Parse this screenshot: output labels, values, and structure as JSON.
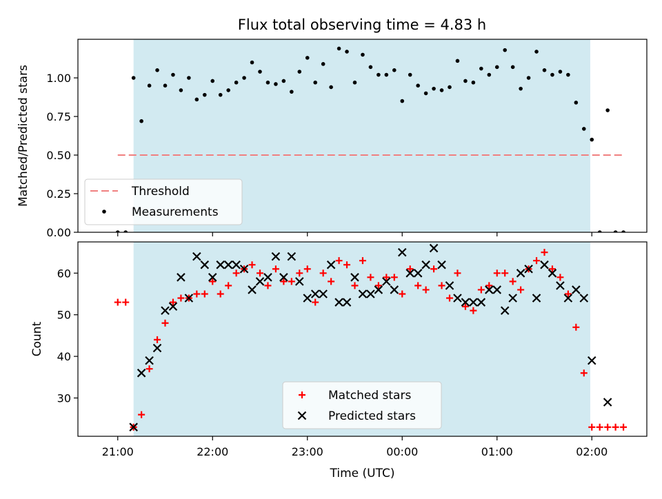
{
  "title": "Flux total observing time = 4.83 h",
  "chart_data": [
    {
      "type": "scatter",
      "ylabel": "Matched/Predicted stars",
      "xlim_hours": [
        20.58,
        26.58
      ],
      "ylim": [
        0,
        1.25
      ],
      "yticks": [
        "0.00",
        "0.25",
        "0.50",
        "0.75",
        "1.00"
      ],
      "ytick_values": [
        0,
        0.25,
        0.5,
        0.75,
        1.0
      ],
      "observing_window": {
        "start": "21:10",
        "end": "01:59",
        "color": "#add8e6"
      },
      "threshold": {
        "name": "Threshold",
        "value": 0.5,
        "x_start": "21:00",
        "x_end": "02:20",
        "color": "#f08080"
      },
      "series": [
        {
          "name": "Measurements",
          "marker": "dot",
          "color": "#000000",
          "points": [
            [
              "21:00",
              0.0
            ],
            [
              "21:05",
              0.0
            ],
            [
              "21:10",
              1.0
            ],
            [
              "21:15",
              0.72
            ],
            [
              "21:20",
              0.95
            ],
            [
              "21:25",
              1.05
            ],
            [
              "21:30",
              0.95
            ],
            [
              "21:35",
              1.02
            ],
            [
              "21:40",
              0.92
            ],
            [
              "21:45",
              1.0
            ],
            [
              "21:50",
              0.86
            ],
            [
              "21:55",
              0.89
            ],
            [
              "22:00",
              0.98
            ],
            [
              "22:05",
              0.89
            ],
            [
              "22:10",
              0.92
            ],
            [
              "22:15",
              0.97
            ],
            [
              "22:20",
              1.0
            ],
            [
              "22:25",
              1.1
            ],
            [
              "22:30",
              1.04
            ],
            [
              "22:35",
              0.97
            ],
            [
              "22:40",
              0.96
            ],
            [
              "22:45",
              0.98
            ],
            [
              "22:50",
              0.91
            ],
            [
              "22:55",
              1.04
            ],
            [
              "23:00",
              1.13
            ],
            [
              "23:05",
              0.97
            ],
            [
              "23:10",
              1.09
            ],
            [
              "23:15",
              0.94
            ],
            [
              "23:20",
              1.19
            ],
            [
              "23:25",
              1.17
            ],
            [
              "23:30",
              0.97
            ],
            [
              "23:35",
              1.15
            ],
            [
              "23:40",
              1.07
            ],
            [
              "23:45",
              1.02
            ],
            [
              "23:50",
              1.02
            ],
            [
              "23:55",
              1.05
            ],
            [
              "00:00",
              0.85
            ],
            [
              "00:05",
              1.02
            ],
            [
              "00:10",
              0.95
            ],
            [
              "00:15",
              0.9
            ],
            [
              "00:20",
              0.93
            ],
            [
              "00:25",
              0.92
            ],
            [
              "00:30",
              0.94
            ],
            [
              "00:35",
              1.11
            ],
            [
              "00:40",
              0.98
            ],
            [
              "00:45",
              0.97
            ],
            [
              "00:50",
              1.06
            ],
            [
              "00:55",
              1.02
            ],
            [
              "01:00",
              1.07
            ],
            [
              "01:05",
              1.18
            ],
            [
              "01:10",
              1.07
            ],
            [
              "01:15",
              0.93
            ],
            [
              "01:20",
              1.0
            ],
            [
              "01:25",
              1.17
            ],
            [
              "01:30",
              1.05
            ],
            [
              "01:35",
              1.02
            ],
            [
              "01:40",
              1.04
            ],
            [
              "01:45",
              1.02
            ],
            [
              "01:50",
              0.84
            ],
            [
              "01:55",
              0.67
            ],
            [
              "02:00",
              0.6
            ],
            [
              "02:05",
              0.0
            ],
            [
              "02:10",
              0.79
            ],
            [
              "02:15",
              0.0
            ],
            [
              "02:20",
              0.0
            ]
          ]
        }
      ],
      "legend": {
        "location": "lower-left",
        "entries": [
          "Threshold",
          "Measurements"
        ]
      }
    },
    {
      "type": "scatter",
      "xlabel": "Time (UTC)",
      "ylabel": "Count",
      "xlim_hours": [
        20.58,
        26.58
      ],
      "ylim": [
        20.8,
        67.5
      ],
      "yticks": [
        "30",
        "40",
        "50",
        "60"
      ],
      "ytick_values": [
        30,
        40,
        50,
        60
      ],
      "xticks": [
        "21:00",
        "22:00",
        "23:00",
        "00:00",
        "01:00",
        "02:00"
      ],
      "observing_window": {
        "start": "21:10",
        "end": "01:59",
        "color": "#add8e6"
      },
      "series": [
        {
          "name": "Matched stars",
          "marker": "plus",
          "color": "#ff0000",
          "points": [
            [
              "21:00",
              53
            ],
            [
              "21:05",
              53
            ],
            [
              "21:10",
              23
            ],
            [
              "21:15",
              26
            ],
            [
              "21:20",
              37
            ],
            [
              "21:25",
              44
            ],
            [
              "21:30",
              48
            ],
            [
              "21:35",
              53
            ],
            [
              "21:40",
              54
            ],
            [
              "21:45",
              54
            ],
            [
              "21:50",
              55
            ],
            [
              "21:55",
              55
            ],
            [
              "22:00",
              58
            ],
            [
              "22:05",
              55
            ],
            [
              "22:10",
              57
            ],
            [
              "22:15",
              60
            ],
            [
              "22:20",
              61
            ],
            [
              "22:25",
              62
            ],
            [
              "22:30",
              60
            ],
            [
              "22:35",
              57
            ],
            [
              "22:40",
              61
            ],
            [
              "22:45",
              58
            ],
            [
              "22:50",
              58
            ],
            [
              "22:55",
              60
            ],
            [
              "23:00",
              61
            ],
            [
              "23:05",
              53
            ],
            [
              "23:10",
              60
            ],
            [
              "23:15",
              58
            ],
            [
              "23:20",
              63
            ],
            [
              "23:25",
              62
            ],
            [
              "23:30",
              57
            ],
            [
              "23:35",
              63
            ],
            [
              "23:40",
              59
            ],
            [
              "23:45",
              57
            ],
            [
              "23:50",
              59
            ],
            [
              "23:55",
              59
            ],
            [
              "00:00",
              55
            ],
            [
              "00:05",
              61
            ],
            [
              "00:10",
              57
            ],
            [
              "00:15",
              56
            ],
            [
              "00:20",
              61
            ],
            [
              "00:25",
              57
            ],
            [
              "00:30",
              54
            ],
            [
              "00:35",
              60
            ],
            [
              "00:40",
              52
            ],
            [
              "00:45",
              51
            ],
            [
              "00:50",
              56
            ],
            [
              "00:55",
              57
            ],
            [
              "01:00",
              60
            ],
            [
              "01:05",
              60
            ],
            [
              "01:10",
              58
            ],
            [
              "01:15",
              56
            ],
            [
              "01:20",
              61
            ],
            [
              "01:25",
              63
            ],
            [
              "01:30",
              65
            ],
            [
              "01:35",
              61
            ],
            [
              "01:40",
              59
            ],
            [
              "01:45",
              55
            ],
            [
              "01:50",
              47
            ],
            [
              "01:55",
              36
            ],
            [
              "02:00",
              23
            ],
            [
              "02:05",
              23
            ],
            [
              "02:10",
              23
            ],
            [
              "02:15",
              23
            ],
            [
              "02:20",
              23
            ]
          ]
        },
        {
          "name": "Predicted stars",
          "marker": "x",
          "color": "#000000",
          "points": [
            [
              "21:10",
              23
            ],
            [
              "21:15",
              36
            ],
            [
              "21:20",
              39
            ],
            [
              "21:25",
              42
            ],
            [
              "21:30",
              51
            ],
            [
              "21:35",
              52
            ],
            [
              "21:40",
              59
            ],
            [
              "21:45",
              54
            ],
            [
              "21:50",
              64
            ],
            [
              "21:55",
              62
            ],
            [
              "22:00",
              59
            ],
            [
              "22:05",
              62
            ],
            [
              "22:10",
              62
            ],
            [
              "22:15",
              62
            ],
            [
              "22:20",
              61
            ],
            [
              "22:25",
              56
            ],
            [
              "22:30",
              58
            ],
            [
              "22:35",
              59
            ],
            [
              "22:40",
              64
            ],
            [
              "22:45",
              59
            ],
            [
              "22:50",
              64
            ],
            [
              "22:55",
              58
            ],
            [
              "23:00",
              54
            ],
            [
              "23:05",
              55
            ],
            [
              "23:10",
              55
            ],
            [
              "23:15",
              62
            ],
            [
              "23:20",
              53
            ],
            [
              "23:25",
              53
            ],
            [
              "23:30",
              59
            ],
            [
              "23:35",
              55
            ],
            [
              "23:40",
              55
            ],
            [
              "23:45",
              56
            ],
            [
              "23:50",
              58
            ],
            [
              "23:55",
              56
            ],
            [
              "00:00",
              65
            ],
            [
              "00:05",
              60
            ],
            [
              "00:10",
              60
            ],
            [
              "00:15",
              62
            ],
            [
              "00:20",
              66
            ],
            [
              "00:25",
              62
            ],
            [
              "00:30",
              57
            ],
            [
              "00:35",
              54
            ],
            [
              "00:40",
              53
            ],
            [
              "00:45",
              53
            ],
            [
              "00:50",
              53
            ],
            [
              "00:55",
              56
            ],
            [
              "01:00",
              56
            ],
            [
              "01:05",
              51
            ],
            [
              "01:10",
              54
            ],
            [
              "01:15",
              60
            ],
            [
              "01:20",
              61
            ],
            [
              "01:25",
              54
            ],
            [
              "01:30",
              62
            ],
            [
              "01:35",
              60
            ],
            [
              "01:40",
              57
            ],
            [
              "01:45",
              54
            ],
            [
              "01:50",
              56
            ],
            [
              "01:55",
              54
            ],
            [
              "02:00",
              39
            ],
            [
              "02:10",
              29
            ]
          ]
        }
      ],
      "legend": {
        "location": "lower-center",
        "entries": [
          "Matched stars",
          "Predicted stars"
        ]
      }
    }
  ]
}
